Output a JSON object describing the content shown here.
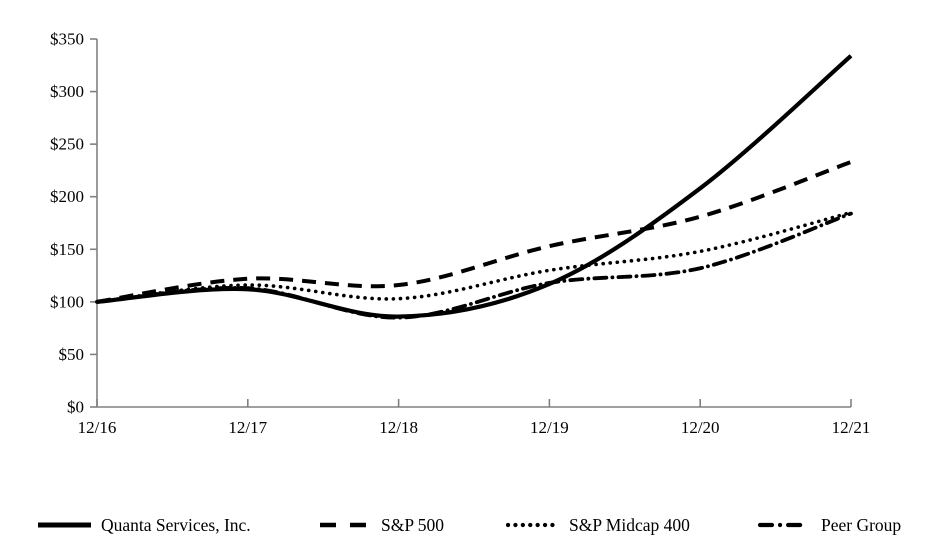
{
  "chart_data": {
    "type": "line",
    "title": "",
    "xlabel": "",
    "ylabel": "",
    "categories": [
      "12/16",
      "12/17",
      "12/18",
      "12/19",
      "12/20",
      "12/21"
    ],
    "y_tick_labels": [
      "$0",
      "$50",
      "$100",
      "$150",
      "$200",
      "$250",
      "$300",
      "$350"
    ],
    "ylim": [
      0,
      350
    ],
    "y_step": 50,
    "grid": "off",
    "legend_position": "bottom",
    "axis_color": "#808080",
    "line_color": "#000000",
    "series": [
      {
        "name": "Quanta Services, Inc.",
        "line_style": "solid",
        "values": [
          100,
          112,
          86,
          117,
          208,
          334
        ]
      },
      {
        "name": "S&P 500",
        "line_style": "dash",
        "values": [
          100,
          122,
          116,
          153,
          181,
          233
        ]
      },
      {
        "name": "S&P Midcap 400",
        "line_style": "dot",
        "values": [
          100,
          116,
          103,
          130,
          148,
          185
        ]
      },
      {
        "name": "Peer Group",
        "line_style": "dashdot",
        "values": [
          100,
          113,
          85,
          118,
          132,
          184
        ]
      }
    ]
  }
}
